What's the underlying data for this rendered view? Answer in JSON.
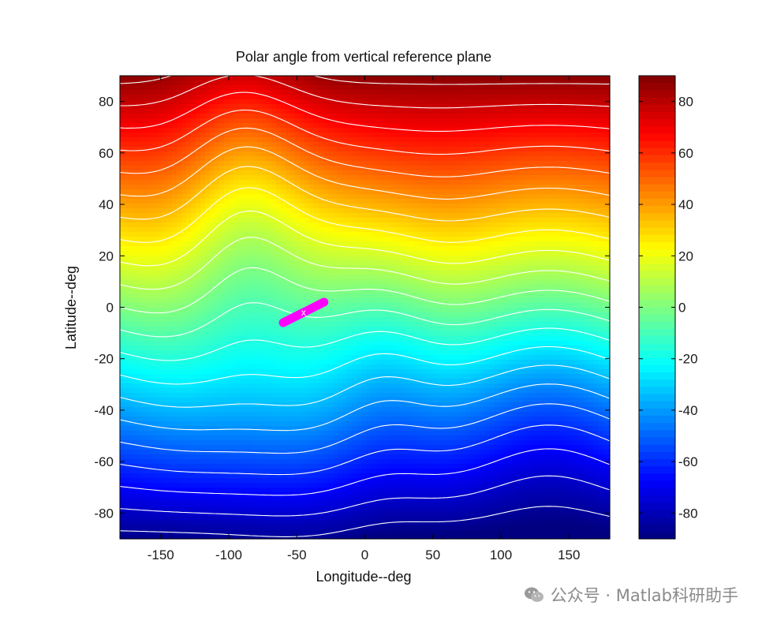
{
  "chart_data": {
    "type": "heatmap",
    "title": "Polar angle from vertical reference plane",
    "xlabel": "Longitude--deg",
    "ylabel": "Latitude--deg",
    "xlim": [
      -180,
      180
    ],
    "ylim": [
      -90,
      90
    ],
    "xticks": [
      -150,
      -100,
      -50,
      0,
      50,
      100,
      150
    ],
    "yticks": [
      80,
      60,
      40,
      20,
      0,
      -20,
      -40,
      -60,
      -80
    ],
    "colorbar": {
      "range": [
        -90,
        90
      ],
      "ticks": [
        80,
        60,
        40,
        20,
        0,
        -20,
        -40,
        -60,
        -80
      ],
      "colormap": "jet"
    },
    "contours": "white",
    "marker": {
      "color": "#ff00ff",
      "label": "x",
      "lon": [
        -60,
        -30
      ],
      "lat": [
        -6,
        2
      ]
    },
    "grid": false
  },
  "watermark": {
    "text": "公众号 · Matlab科研助手"
  }
}
